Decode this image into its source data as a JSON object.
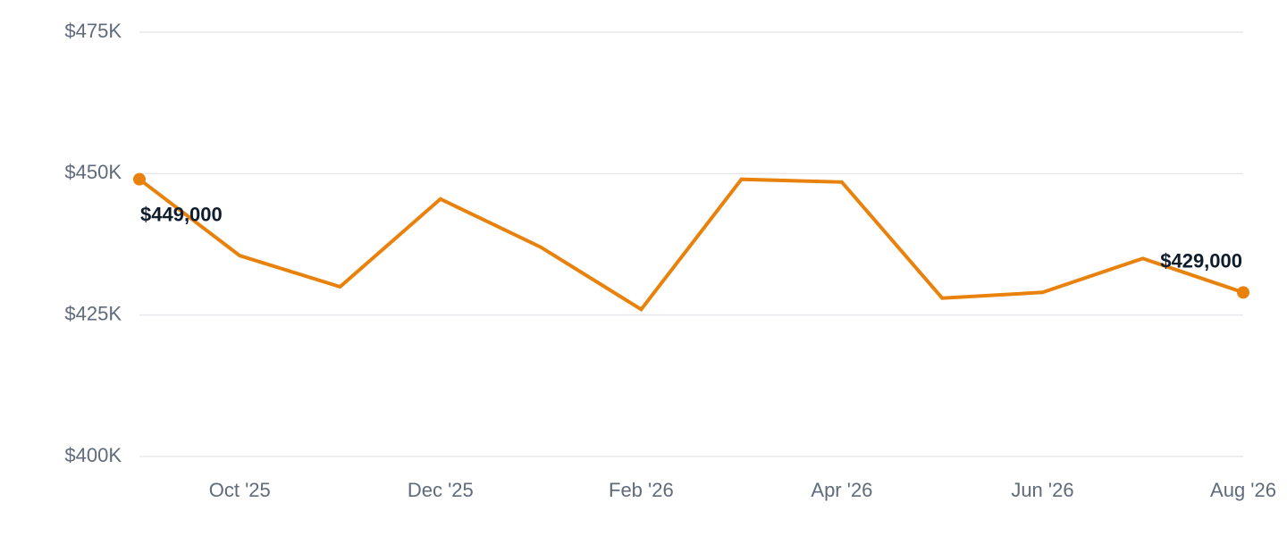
{
  "chart_data": {
    "type": "line",
    "colors": {
      "line": "#e8820c",
      "grid": "#e6e8eb",
      "tick_text": "#5f6b7a",
      "label_text": "#0e1c2b"
    },
    "ylim": [
      400000,
      475000
    ],
    "y_ticks": [
      {
        "value": 475000,
        "label": "$475K"
      },
      {
        "value": 450000,
        "label": "$450K"
      },
      {
        "value": 425000,
        "label": "$425K"
      },
      {
        "value": 400000,
        "label": "$400K"
      }
    ],
    "xlim": [
      "2025-09",
      "2026-08"
    ],
    "x_ticks": [
      {
        "x": "2025-10",
        "label": "Oct '25"
      },
      {
        "x": "2025-12",
        "label": "Dec '25"
      },
      {
        "x": "2026-02",
        "label": "Feb '26"
      },
      {
        "x": "2026-04",
        "label": "Apr '26"
      },
      {
        "x": "2026-06",
        "label": "Jun '26"
      },
      {
        "x": "2026-08",
        "label": "Aug '26"
      }
    ],
    "series": [
      {
        "x": [
          "2025-09",
          "2025-10",
          "2025-11",
          "2025-12",
          "2026-01",
          "2026-02",
          "2026-03",
          "2026-04",
          "2026-05",
          "2026-06",
          "2026-07",
          "2026-08"
        ],
        "values": [
          449000,
          435500,
          430000,
          445500,
          437000,
          426000,
          449000,
          448500,
          428000,
          429000,
          435000,
          429000
        ]
      }
    ],
    "annotations": [
      {
        "x": "2025-09",
        "value": 449000,
        "label": "$449,000",
        "position": "below-right"
      },
      {
        "x": "2026-08",
        "value": 429000,
        "label": "$429,000",
        "position": "above-left"
      }
    ],
    "grid": true,
    "legend": "none"
  }
}
